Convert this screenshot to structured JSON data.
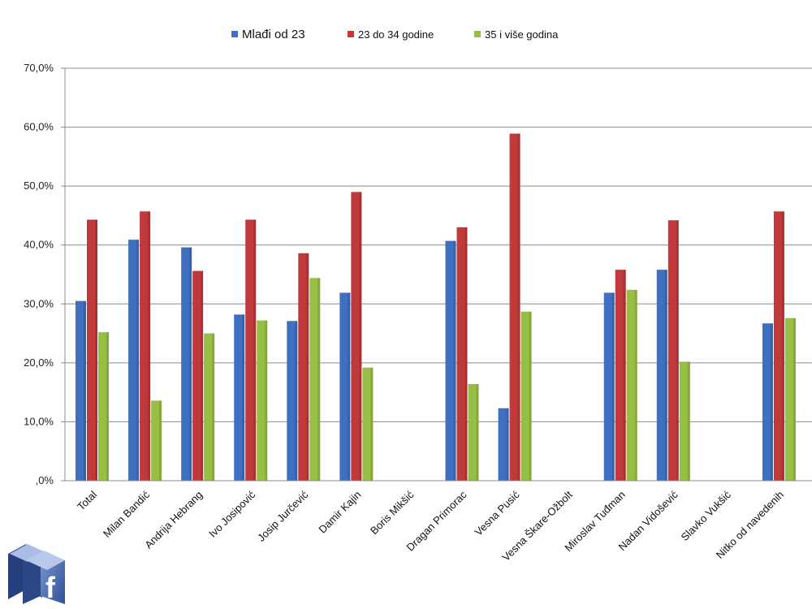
{
  "chart_data": {
    "type": "bar",
    "categories": [
      "Total",
      "Milan Bandić",
      "Andrija Hebrang",
      "Ivo Josipović",
      "Josip Jurčević",
      "Damir Kajin",
      "Boris Mikšić",
      "Dragan Primorac",
      "Vesna Pusić",
      "Vesna Škare-Ožbolt",
      "Miroslav Tuđman",
      "Nadan Vidošević",
      "Slavko Vukšić",
      "Nitko od navedenih"
    ],
    "series": [
      {
        "name": "Mlađi od 23",
        "color": "#3f6fc0",
        "values": [
          30.5,
          40.9,
          39.6,
          28.2,
          27.1,
          31.9,
          null,
          40.7,
          12.3,
          null,
          31.9,
          35.8,
          null,
          26.7
        ]
      },
      {
        "name": "23 do 34 godine",
        "color": "#c0393b",
        "values": [
          44.3,
          45.7,
          35.6,
          44.3,
          38.6,
          49.0,
          null,
          43.0,
          58.9,
          null,
          35.8,
          44.2,
          null,
          45.7
        ]
      },
      {
        "name": "35 i više godina",
        "color": "#98bf45",
        "values": [
          25.2,
          13.6,
          25.0,
          27.2,
          34.4,
          19.2,
          null,
          16.4,
          28.7,
          null,
          32.4,
          20.2,
          null,
          27.6
        ]
      }
    ],
    "yticks": [
      "70,0%",
      "60,0%",
      "50,0%",
      "40,0%",
      "30,0%",
      "20,0%",
      "10,0%",
      ",0%"
    ],
    "ylim": [
      0,
      70
    ],
    "grid": true,
    "legend_position": "top"
  },
  "logo": {
    "icon": "facebook-icon",
    "letter": "f"
  }
}
